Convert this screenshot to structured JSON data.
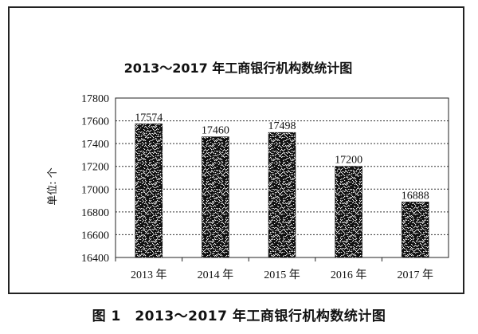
{
  "caption": "图 1　2013～2017 年工商银行机构数统计图",
  "chart_data": {
    "type": "bar",
    "title": "2013～2017 年工商银行机构数统计图",
    "ylabel": "单位: 个",
    "xlabel": "",
    "categories": [
      "2013 年",
      "2014 年",
      "2015 年",
      "2016 年",
      "2017 年"
    ],
    "values": [
      17574,
      17460,
      17498,
      17200,
      16888
    ],
    "ylim": [
      16400,
      17800
    ],
    "yticks": [
      16400,
      16600,
      16800,
      17000,
      17200,
      17400,
      17600,
      17800
    ],
    "ytick_labels": [
      "16400",
      "16600",
      "16800",
      "17000",
      "17200",
      "17400",
      "17600",
      "17800"
    ],
    "data_labels": [
      "17574",
      "17460",
      "17498",
      "17200",
      "16888"
    ],
    "grid": true,
    "legend": "none",
    "bar_pattern": "stippled black-white noise",
    "colors": {
      "bar_dark": "#111111",
      "bar_light": "#f2f2f2",
      "grid": "#333333"
    }
  }
}
